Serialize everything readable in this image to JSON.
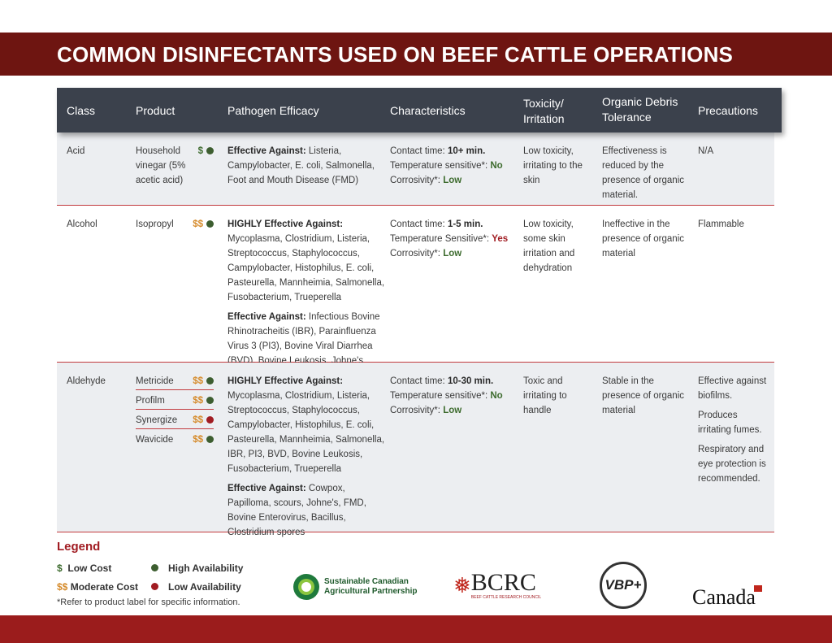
{
  "title": "COMMON DISINFECTANTS USED ON BEEF CATTLE OPERATIONS",
  "headers": [
    "Class",
    "Product",
    "Pathogen Efficacy",
    "Characteristics",
    "Toxicity/ Irritation",
    "Organic Debris Tolerance",
    "Precautions"
  ],
  "rows": [
    {
      "class": "Acid",
      "products": [
        {
          "name": "Household vinegar (5% acetic acid)",
          "cost": "$",
          "availability": "High"
        }
      ],
      "pathogen": [
        {
          "label": "Effective Against:",
          "text": " Listeria, Campylobacter, E. coli, Salmonella, Foot and Mouth Disease (FMD)"
        }
      ],
      "contact_label": "Contact time: ",
      "contact": "10+ min.",
      "temp_label": "Temperature sensitive*: ",
      "temp": "No",
      "corr_label": "Corrosivity*: ",
      "corr": "Low",
      "toxicity": "Low toxicity, irritating to the skin",
      "organic": "Effectiveness is reduced by the presence of organic material.",
      "precautions": [
        "N/A"
      ]
    },
    {
      "class": "Alcohol",
      "products": [
        {
          "name": "Isopropyl",
          "cost": "$$",
          "availability": "High"
        }
      ],
      "pathogen": [
        {
          "label": "HIGHLY Effective Against:",
          "text": " Mycoplasma, Clostridium, Listeria, Streptococcus, Staphylococcus, Campylobacter, Histophilus, E. coli, Pasteurella, Mannheimia, Salmonella, Fusobacterium, Trueperella"
        },
        {
          "label": "Effective Against:",
          "text": " Infectious Bovine Rhinotracheitis (IBR), Parainfluenza Virus 3 (PI3), Bovine Viral Diarrhea (BVD), Bovine Leukosis, Johne's"
        }
      ],
      "contact_label": "Contact time: ",
      "contact": "1-5 min.",
      "temp_label": "Temperature Sensitive*: ",
      "temp": "Yes",
      "corr_label": "Corrosivity*: ",
      "corr": "Low",
      "toxicity": "Low toxicity, some skin irritation and dehydration",
      "organic": "Ineffective in the presence of organic material",
      "precautions": [
        "Flammable"
      ]
    },
    {
      "class": "Aldehyde",
      "products": [
        {
          "name": "Metricide",
          "cost": "$$",
          "availability": "High"
        },
        {
          "name": "Profilm",
          "cost": "$$",
          "availability": "High"
        },
        {
          "name": "Synergize",
          "cost": "$$",
          "availability": "Low"
        },
        {
          "name": "Wavicide",
          "cost": "$$",
          "availability": "High"
        }
      ],
      "pathogen": [
        {
          "label": "HIGHLY Effective Against:",
          "text": " Mycoplasma, Clostridium, Listeria, Streptococcus, Staphylococcus, Campylobacter, Histophilus, E. coli, Pasteurella, Mannheimia, Salmonella, IBR, PI3, BVD, Bovine Leukosis, Fusobacterium, Trueperella"
        },
        {
          "label": "Effective Against:",
          "text": " Cowpox, Papilloma, scours, Johne's, FMD, Bovine Enterovirus, Bacillus, Clostridium spores"
        }
      ],
      "contact_label": "Contact time: ",
      "contact": "10-30 min.",
      "temp_label": "Temperature sensitive*: ",
      "temp": "No",
      "corr_label": "Corrosivity*: ",
      "corr": "Low",
      "toxicity": "Toxic and irritating to handle",
      "organic": "Stable in the presence of organic material",
      "precautions": [
        "Effective against biofilms.",
        "Produces irritating fumes.",
        "Respiratory and eye protection is recommended."
      ]
    }
  ],
  "legend": {
    "title": "Legend",
    "low_cost_symbol": "$",
    "low_cost": "Low Cost",
    "mod_cost_symbol": "$$",
    "mod_cost": "Moderate Cost",
    "high_avail": "High Availability",
    "low_avail": "Low Availability",
    "note": "*Refer to product label for specific information."
  },
  "logos": {
    "scap": "Sustainable Canadian Agricultural Partnership",
    "bcrc": "BCRC",
    "bcrc_sub": "BEEF CATTLE RESEARCH COUNCIL",
    "vbp": "VBP+",
    "canada": "Canada"
  },
  "colors": {
    "title_bar": "#6e1511",
    "header": "#3b414c",
    "divider": "#c23a3e",
    "low_cost": "#3d6b2e",
    "moderate_cost": "#d58a2a",
    "high_availability": "#3d5e30",
    "low_availability": "#a11c22"
  }
}
